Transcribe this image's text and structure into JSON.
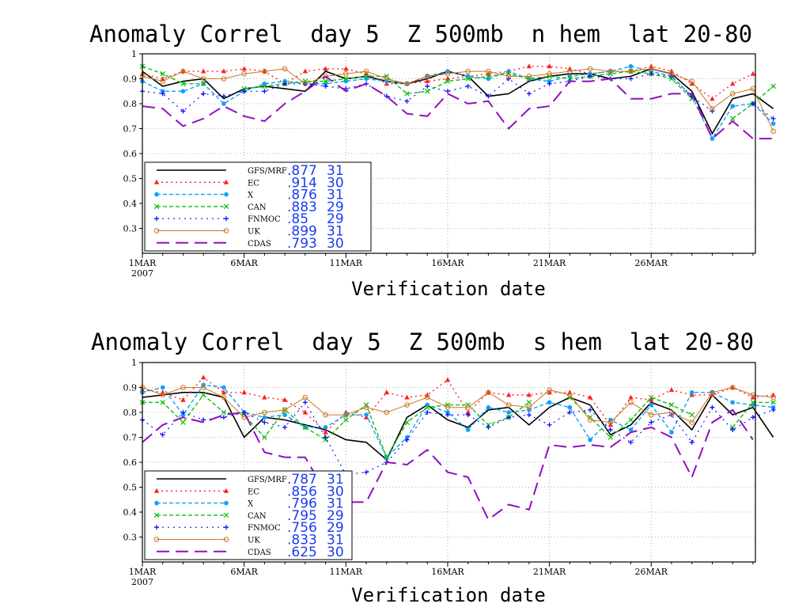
{
  "chart_data": [
    {
      "type": "line",
      "title": "Anomaly Correl  day 5  Z 500mb  n hem  lat 20-80",
      "xlabel": "Verification date",
      "ylabel": "",
      "ylim": [
        0.2,
        1.0
      ],
      "ytick_labels": [
        "0.3",
        "0.4",
        "0.5",
        "0.6",
        "0.7",
        "0.8",
        "0.9",
        "1"
      ],
      "xtick_labels": [
        {
          "line1": "1MAR",
          "line2": "2007"
        },
        {
          "line1": "6MAR"
        },
        {
          "line1": "11MAR"
        },
        {
          "line1": "16MAR"
        },
        {
          "line1": "21MAR"
        },
        {
          "line1": "26MAR"
        }
      ],
      "xlim": [
        1,
        31
      ],
      "grid": true,
      "legend_position": "lower-left",
      "series": [
        {
          "name": "GFS/MRF",
          "mean": ".877",
          "count": "31",
          "color": "#000000",
          "values": [
            0.93,
            0.87,
            0.89,
            0.9,
            0.82,
            0.86,
            0.87,
            0.86,
            0.85,
            0.93,
            0.9,
            0.91,
            0.89,
            0.88,
            0.9,
            0.93,
            0.91,
            0.83,
            0.84,
            0.89,
            0.91,
            0.92,
            0.92,
            0.9,
            0.91,
            0.94,
            0.92,
            0.85,
            0.68,
            0.82,
            0.84,
            0.78
          ]
        },
        {
          "name": "EC",
          "mean": ".914",
          "count": "30",
          "color": "#ff2020",
          "values": [
            0.92,
            0.9,
            0.93,
            0.93,
            0.93,
            0.94,
            0.93,
            0.88,
            0.93,
            0.94,
            0.94,
            0.92,
            0.88,
            0.88,
            0.89,
            0.9,
            0.91,
            0.92,
            0.93,
            0.95,
            0.95,
            0.94,
            0.92,
            0.93,
            0.93,
            0.95,
            0.93,
            0.88,
            0.82,
            0.88,
            0.92,
            null
          ]
        },
        {
          "name": "X",
          "mean": ".876",
          "count": "31",
          "color": "#10a0ff",
          "values": [
            0.89,
            0.85,
            0.85,
            0.88,
            0.8,
            0.85,
            0.88,
            0.89,
            0.88,
            0.88,
            0.89,
            0.9,
            0.89,
            0.88,
            0.91,
            0.93,
            0.91,
            0.9,
            0.93,
            0.9,
            0.89,
            0.91,
            0.92,
            0.93,
            0.95,
            0.93,
            0.91,
            0.83,
            0.66,
            0.79,
            0.8,
            0.72
          ]
        },
        {
          "name": "CAN",
          "mean": ".883",
          "count": "29",
          "color": "#10c010",
          "values": [
            0.95,
            0.92,
            0.88,
            0.88,
            null,
            0.86,
            0.87,
            0.88,
            0.89,
            0.89,
            0.9,
            0.91,
            0.91,
            0.84,
            0.85,
            0.89,
            0.9,
            0.91,
            0.92,
            0.9,
            0.91,
            0.9,
            0.91,
            0.92,
            0.93,
            0.92,
            0.9,
            0.82,
            null,
            0.74,
            0.8,
            0.87
          ]
        },
        {
          "name": "FNMOC",
          "mean": ".85",
          "count": "29",
          "color": "#1010ff",
          "values": [
            0.85,
            0.84,
            0.77,
            0.84,
            0.83,
            0.85,
            0.85,
            0.88,
            0.88,
            0.87,
            0.86,
            0.88,
            0.83,
            0.81,
            0.87,
            0.85,
            0.87,
            0.83,
            0.9,
            0.84,
            0.88,
            0.89,
            0.91,
            0.9,
            0.9,
            0.92,
            0.91,
            0.83,
            0.77,
            null,
            0.8,
            0.74
          ]
        },
        {
          "name": "UK",
          "mean": ".899",
          "count": "31",
          "color": "#c87820",
          "values": [
            0.91,
            0.89,
            0.93,
            0.9,
            0.9,
            0.92,
            0.93,
            0.94,
            0.88,
            0.91,
            0.92,
            0.93,
            0.9,
            0.88,
            0.91,
            0.92,
            0.93,
            0.93,
            0.91,
            0.91,
            0.92,
            0.93,
            0.94,
            0.93,
            0.93,
            0.94,
            0.92,
            0.89,
            0.78,
            0.84,
            0.86,
            0.69
          ]
        },
        {
          "name": "CDAS",
          "mean": ".793",
          "count": "30",
          "color": "#9010c0",
          "values": [
            0.79,
            0.78,
            0.71,
            0.74,
            0.79,
            0.75,
            0.73,
            0.8,
            0.85,
            0.91,
            0.85,
            0.88,
            0.83,
            0.76,
            0.75,
            0.84,
            0.8,
            0.81,
            0.7,
            0.78,
            0.79,
            0.89,
            0.89,
            0.9,
            0.82,
            0.82,
            0.84,
            0.84,
            0.66,
            0.73,
            0.66,
            0.66
          ]
        }
      ]
    },
    {
      "type": "line",
      "title": "Anomaly Correl  day 5  Z 500mb  s hem  lat 20-80",
      "xlabel": "Verification date",
      "ylabel": "",
      "ylim": [
        0.2,
        1.0
      ],
      "ytick_labels": [
        "0.3",
        "0.4",
        "0.5",
        "0.6",
        "0.7",
        "0.8",
        "0.9",
        "1"
      ],
      "xtick_labels": [
        {
          "line1": "1MAR",
          "line2": "2007"
        },
        {
          "line1": "6MAR"
        },
        {
          "line1": "11MAR"
        },
        {
          "line1": "16MAR"
        },
        {
          "line1": "21MAR"
        },
        {
          "line1": "26MAR"
        }
      ],
      "xlim": [
        1,
        31
      ],
      "grid": true,
      "legend_position": "lower-left",
      "series": [
        {
          "name": "GFS/MRF",
          "mean": ".787",
          "count": "31",
          "color": "#000000",
          "values": [
            0.86,
            0.87,
            0.88,
            0.88,
            0.86,
            0.7,
            0.78,
            0.77,
            0.75,
            0.73,
            0.69,
            0.68,
            0.61,
            0.78,
            0.83,
            0.77,
            0.74,
            0.81,
            0.82,
            0.75,
            0.82,
            0.86,
            0.83,
            0.71,
            0.75,
            0.84,
            0.81,
            0.73,
            0.87,
            0.79,
            0.82,
            0.7
          ]
        },
        {
          "name": "EC",
          "mean": ".856",
          "count": "30",
          "color": "#ff2020",
          "values": [
            0.89,
            0.88,
            0.85,
            0.94,
            0.88,
            0.88,
            0.86,
            0.85,
            0.8,
            0.72,
            0.8,
            0.78,
            0.88,
            0.86,
            0.87,
            0.93,
            0.8,
            0.88,
            0.87,
            0.87,
            0.88,
            0.88,
            0.86,
            0.75,
            0.86,
            0.85,
            0.89,
            0.87,
            0.87,
            0.9,
            0.86,
            0.87
          ]
        },
        {
          "name": "X",
          "mean": ".796",
          "count": "31",
          "color": "#10a0ff",
          "values": [
            0.88,
            0.9,
            0.79,
            0.91,
            0.9,
            0.8,
            0.78,
            0.79,
            0.74,
            0.74,
            0.79,
            0.79,
            0.62,
            0.7,
            0.83,
            0.8,
            0.73,
            0.82,
            0.8,
            0.81,
            0.84,
            0.82,
            0.69,
            0.77,
            0.73,
            0.83,
            0.72,
            0.88,
            0.88,
            0.84,
            0.83,
            0.82
          ]
        },
        {
          "name": "CAN",
          "mean": ".795",
          "count": "29",
          "color": "#10c010",
          "values": [
            0.84,
            0.84,
            0.76,
            0.87,
            0.8,
            0.79,
            0.7,
            0.81,
            0.74,
            0.69,
            0.77,
            0.83,
            0.62,
            0.76,
            0.82,
            0.83,
            0.83,
            0.75,
            0.78,
            0.84,
            null,
            0.86,
            0.78,
            0.7,
            0.77,
            0.86,
            0.83,
            0.79,
            null,
            0.74,
            0.84,
            0.84
          ]
        },
        {
          "name": "FNMOC",
          "mean": ".756",
          "count": "29",
          "color": "#1010ff",
          "values": [
            0.77,
            0.71,
            0.8,
            0.77,
            0.78,
            0.8,
            0.76,
            0.74,
            0.84,
            0.7,
            0.55,
            0.56,
            0.6,
            0.69,
            0.8,
            0.79,
            0.79,
            0.74,
            0.78,
            0.79,
            0.75,
            0.8,
            0.81,
            0.73,
            0.68,
            0.76,
            0.79,
            0.68,
            0.82,
            0.73,
            0.78,
            0.81
          ]
        },
        {
          "name": "UK",
          "mean": ".833",
          "count": "31",
          "color": "#c87820",
          "values": [
            0.9,
            0.87,
            0.9,
            0.9,
            0.86,
            0.78,
            0.8,
            0.81,
            0.86,
            0.79,
            0.79,
            0.82,
            0.8,
            0.83,
            0.86,
            0.82,
            0.82,
            0.88,
            0.83,
            0.82,
            0.89,
            0.87,
            0.77,
            0.76,
            0.84,
            0.79,
            0.8,
            0.76,
            0.88,
            0.9,
            0.87,
            0.86
          ]
        },
        {
          "name": "CDAS",
          "mean": ".625",
          "count": "30",
          "color": "#9010c0",
          "values": [
            0.68,
            0.75,
            0.78,
            0.76,
            0.79,
            0.8,
            0.64,
            0.62,
            0.62,
            0.48,
            0.44,
            0.44,
            0.6,
            0.59,
            0.65,
            0.56,
            0.54,
            0.37,
            0.43,
            0.41,
            0.67,
            0.66,
            0.67,
            0.66,
            0.72,
            0.74,
            0.7,
            0.54,
            0.76,
            0.81,
            0.69,
            null
          ]
        }
      ]
    }
  ]
}
